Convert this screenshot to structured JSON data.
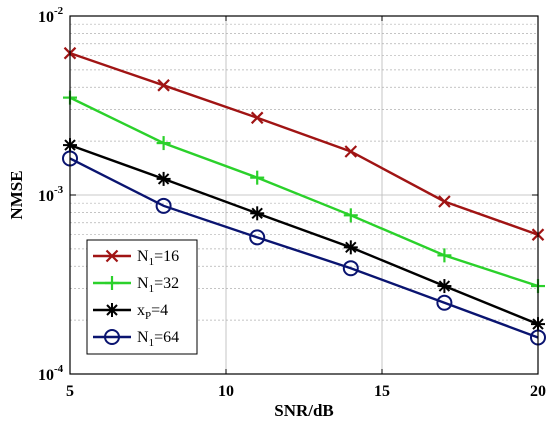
{
  "chart_data": {
    "type": "line",
    "title": "",
    "xlabel": "SNR/dB",
    "ylabel": "NMSE",
    "x": [
      5,
      8,
      11,
      14,
      17,
      20
    ],
    "xlim": [
      5,
      20
    ],
    "ylim": [
      0.0001,
      0.01
    ],
    "yscale": "log",
    "grid": true,
    "legend_position": "bottom-left",
    "x_ticks": [
      "5",
      "10",
      "15",
      "20"
    ],
    "y_ticks": [
      {
        "base": "10",
        "exp": "-2",
        "value": 0.01
      },
      {
        "base": "10",
        "exp": "-3",
        "value": 0.001
      },
      {
        "base": "10",
        "exp": "-4",
        "value": 0.0001
      }
    ],
    "series": [
      {
        "name": "N1=16",
        "label_base": "N",
        "label_sub": "1",
        "label_rest": "=16",
        "color": "#a01414",
        "marker": "x",
        "values": [
          0.0062,
          0.0041,
          0.0027,
          0.00175,
          0.00092,
          0.0006
        ]
      },
      {
        "name": "N1=32",
        "label_base": "N",
        "label_sub": "1",
        "label_rest": "=32",
        "color": "#2bd12b",
        "marker": "plus",
        "values": [
          0.0035,
          0.00195,
          0.00125,
          0.00077,
          0.00046,
          0.00031
        ]
      },
      {
        "name": "xP=4",
        "label_base": "x",
        "label_sub": "P",
        "label_rest": "=4",
        "color": "#000000",
        "marker": "star",
        "values": [
          0.0019,
          0.00123,
          0.00079,
          0.00051,
          0.00031,
          0.00019
        ]
      },
      {
        "name": "N1=64",
        "label_base": "N",
        "label_sub": "1",
        "label_rest": "=64",
        "color": "#0a1470",
        "marker": "circle",
        "values": [
          0.0016,
          0.00087,
          0.00058,
          0.00039,
          0.00025,
          0.00016
        ]
      }
    ]
  }
}
